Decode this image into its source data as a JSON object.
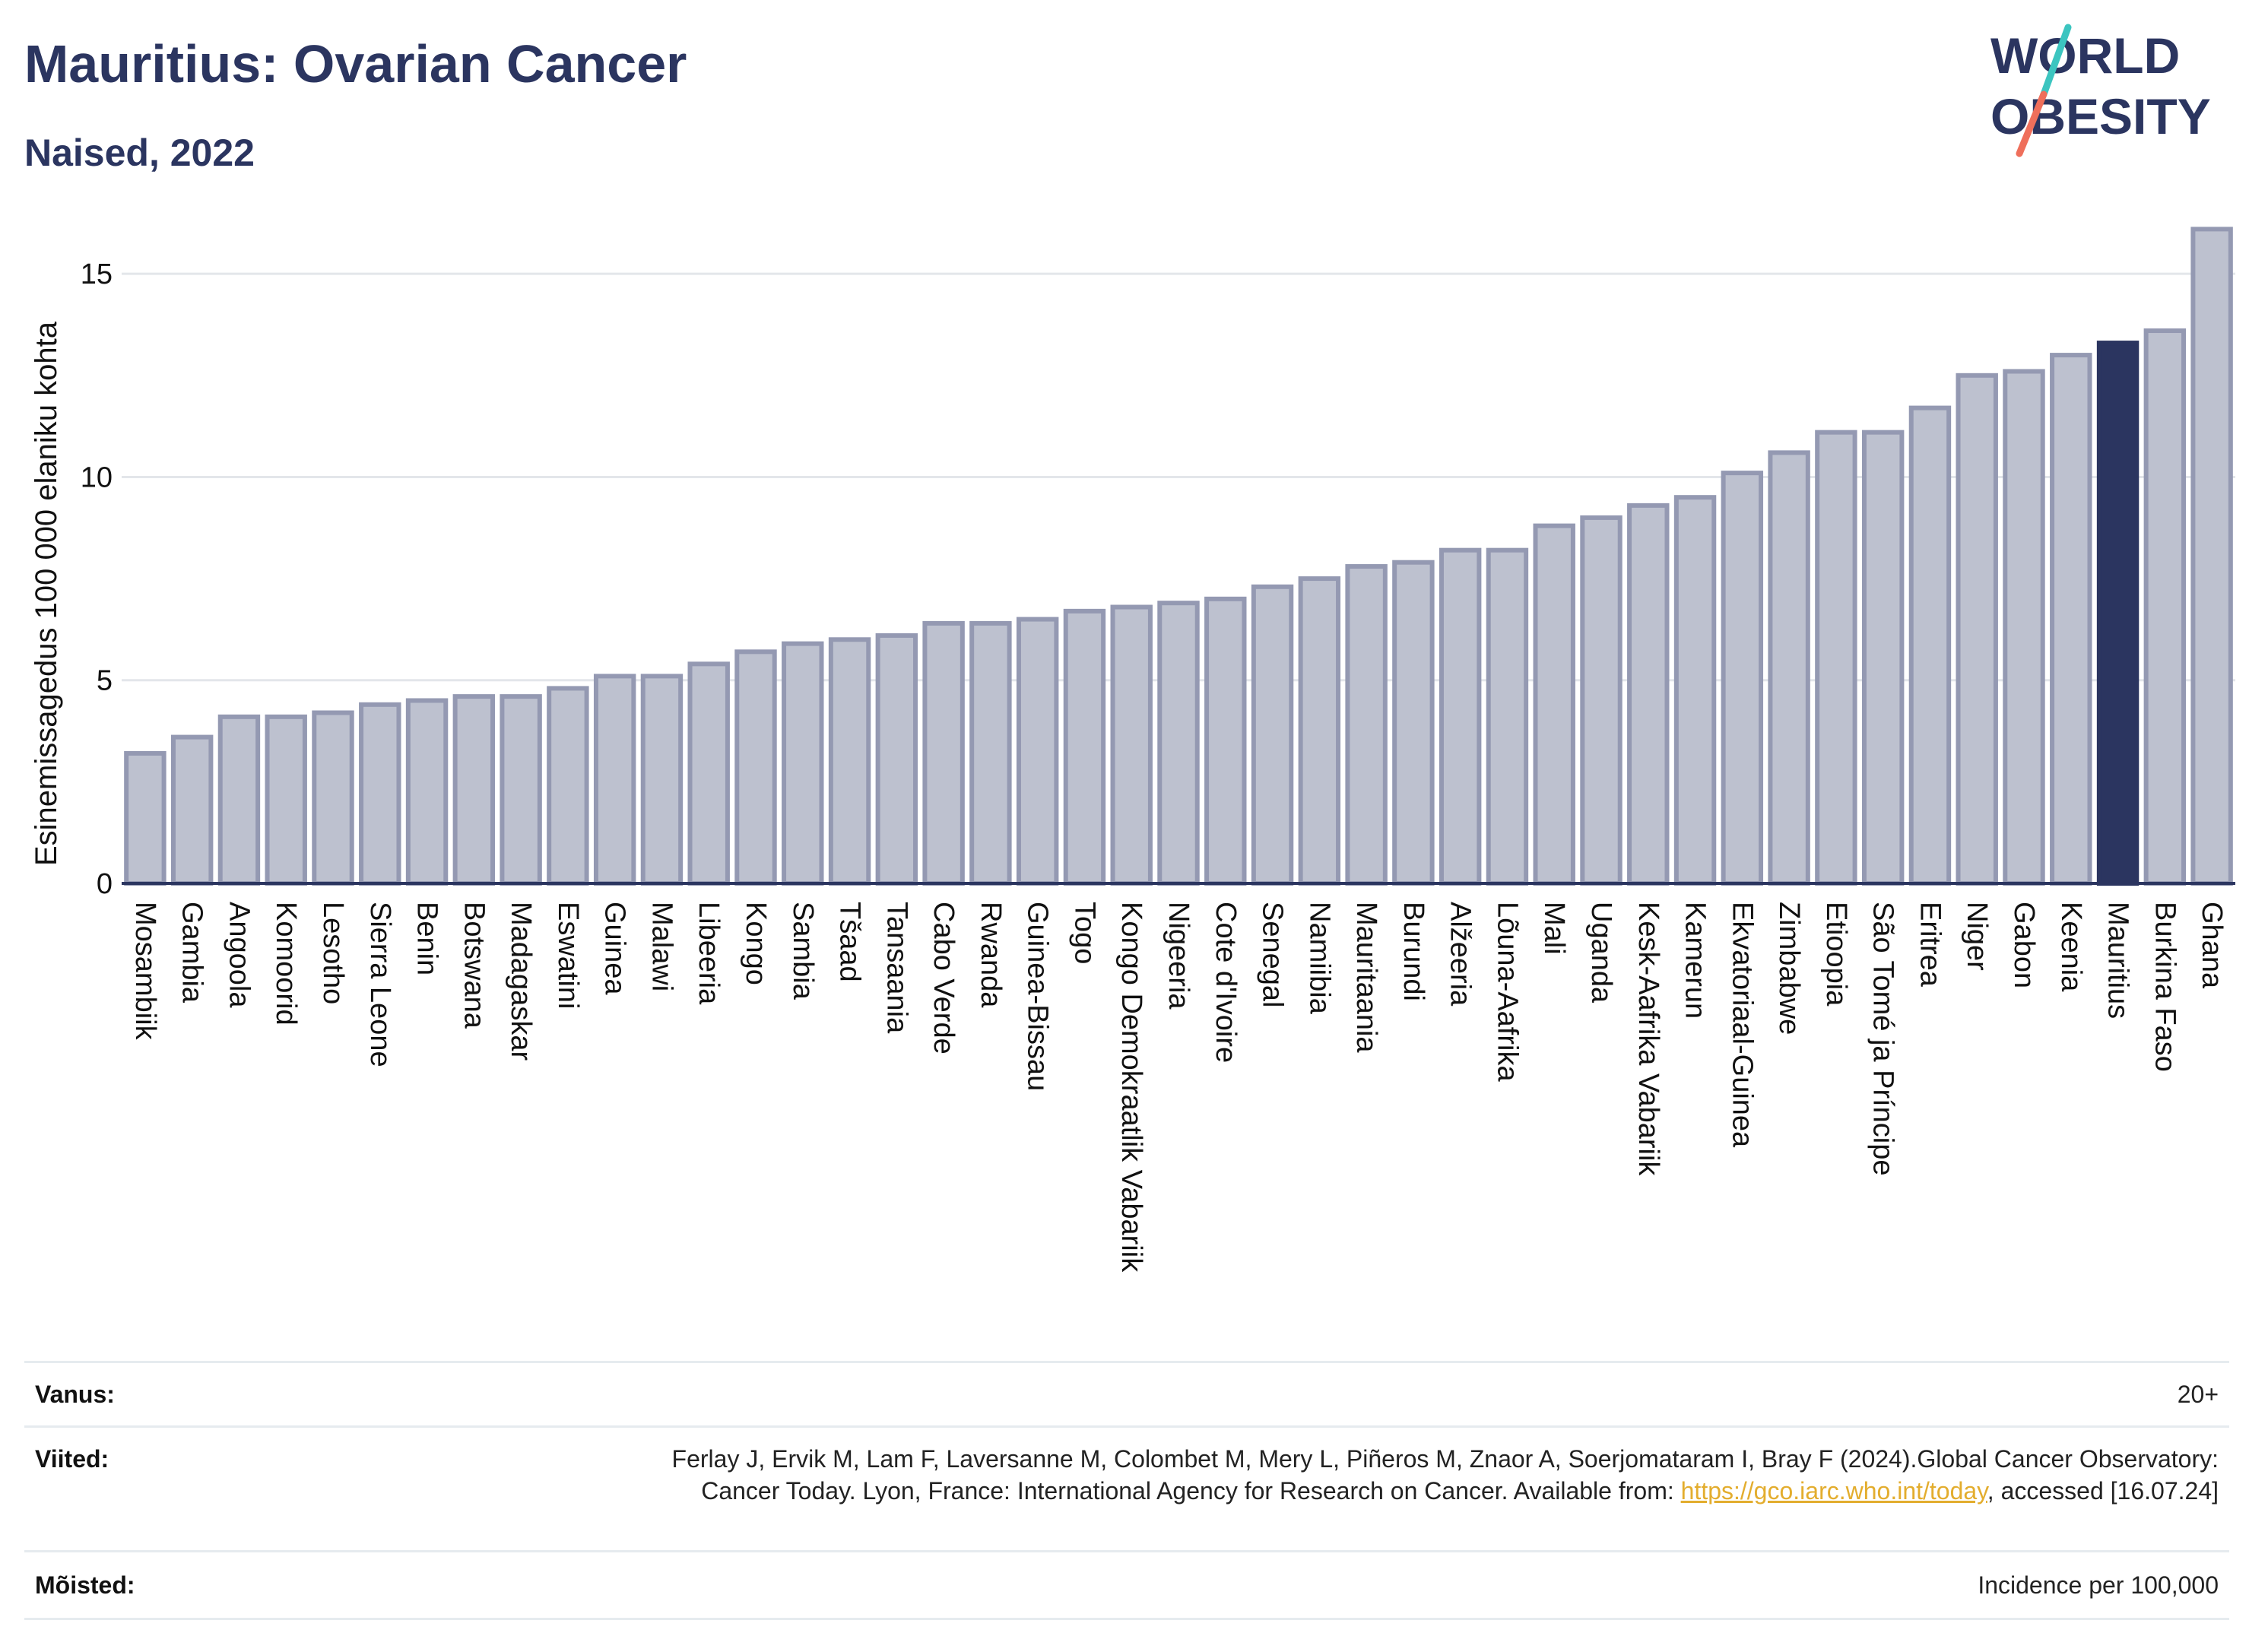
{
  "header": {
    "title": "Mauritius: Ovarian Cancer",
    "subtitle": "Naised, 2022",
    "logo_text_line1": "WORLD",
    "logo_text_line2": "OBESITY"
  },
  "colors": {
    "bar": "#bdc1cf",
    "bar_stroke": "#9499b2",
    "highlight": "#2b3560",
    "title": "#2b3560",
    "logo_teal": "#3cc5c0",
    "logo_coral": "#ef6f5b",
    "link": "#e3ad2e"
  },
  "chart_data": {
    "type": "bar",
    "ylabel": "Esinemissagedus 100 000 elaniku kohta",
    "ylim": [
      0,
      16.5
    ],
    "yticks": [
      0,
      5,
      10,
      15
    ],
    "highlight": "Mauritius",
    "grid": true,
    "categories": [
      "Mosambiik",
      "Gambia",
      "Angoola",
      "Komoorid",
      "Lesotho",
      "Sierra Leone",
      "Benin",
      "Botswana",
      "Madagaskar",
      "Eswatini",
      "Guinea",
      "Malawi",
      "Libeeria",
      "Kongo",
      "Sambia",
      "Tšaad",
      "Tansaania",
      "Cabo Verde",
      "Rwanda",
      "Guinea-Bissau",
      "Togo",
      "Kongo Demokraatlik Vabariik",
      "Nigeeria",
      "Cote d'Ivoire",
      "Senegal",
      "Namiibia",
      "Mauritaania",
      "Burundi",
      "Alžeeria",
      "Lõuna-Aafrika",
      "Mali",
      "Uganda",
      "Kesk-Aafrika Vabariik",
      "Kamerun",
      "Ekvatoriaal-Guinea",
      "Zimbabwe",
      "Etioopia",
      "São Tomé ja Príncipe",
      "Eritrea",
      "Niger",
      "Gabon",
      "Keenia",
      "Mauritius",
      "Burkina Faso",
      "Ghana"
    ],
    "values": [
      3.2,
      3.6,
      4.1,
      4.1,
      4.2,
      4.4,
      4.5,
      4.6,
      4.6,
      4.8,
      5.1,
      5.1,
      5.4,
      5.7,
      5.9,
      6.0,
      6.1,
      6.4,
      6.4,
      6.5,
      6.7,
      6.8,
      6.9,
      7.0,
      7.3,
      7.5,
      7.8,
      7.9,
      8.2,
      8.2,
      8.8,
      9.0,
      9.3,
      9.5,
      10.1,
      10.6,
      11.1,
      11.1,
      11.7,
      12.5,
      12.6,
      13.0,
      13.3,
      13.6,
      16.1
    ]
  },
  "footer": {
    "age_label": "Vanus:",
    "age_value": "20+",
    "refs_label": "Viited:",
    "refs_text_before": "Ferlay J, Ervik M, Lam F, Laversanne M, Colombet M, Mery L, Piñeros M, Znaor A, Soerjomataram I, Bray F (2024).Global Cancer Observatory: Cancer Today. Lyon, France: International Agency for Research on Cancer. Available from: ",
    "refs_link": "https://gco.iarc.who.int/today",
    "refs_text_after": ", accessed [16.07.24]",
    "defs_label": "Mõisted:",
    "defs_value": "Incidence per 100,000"
  }
}
